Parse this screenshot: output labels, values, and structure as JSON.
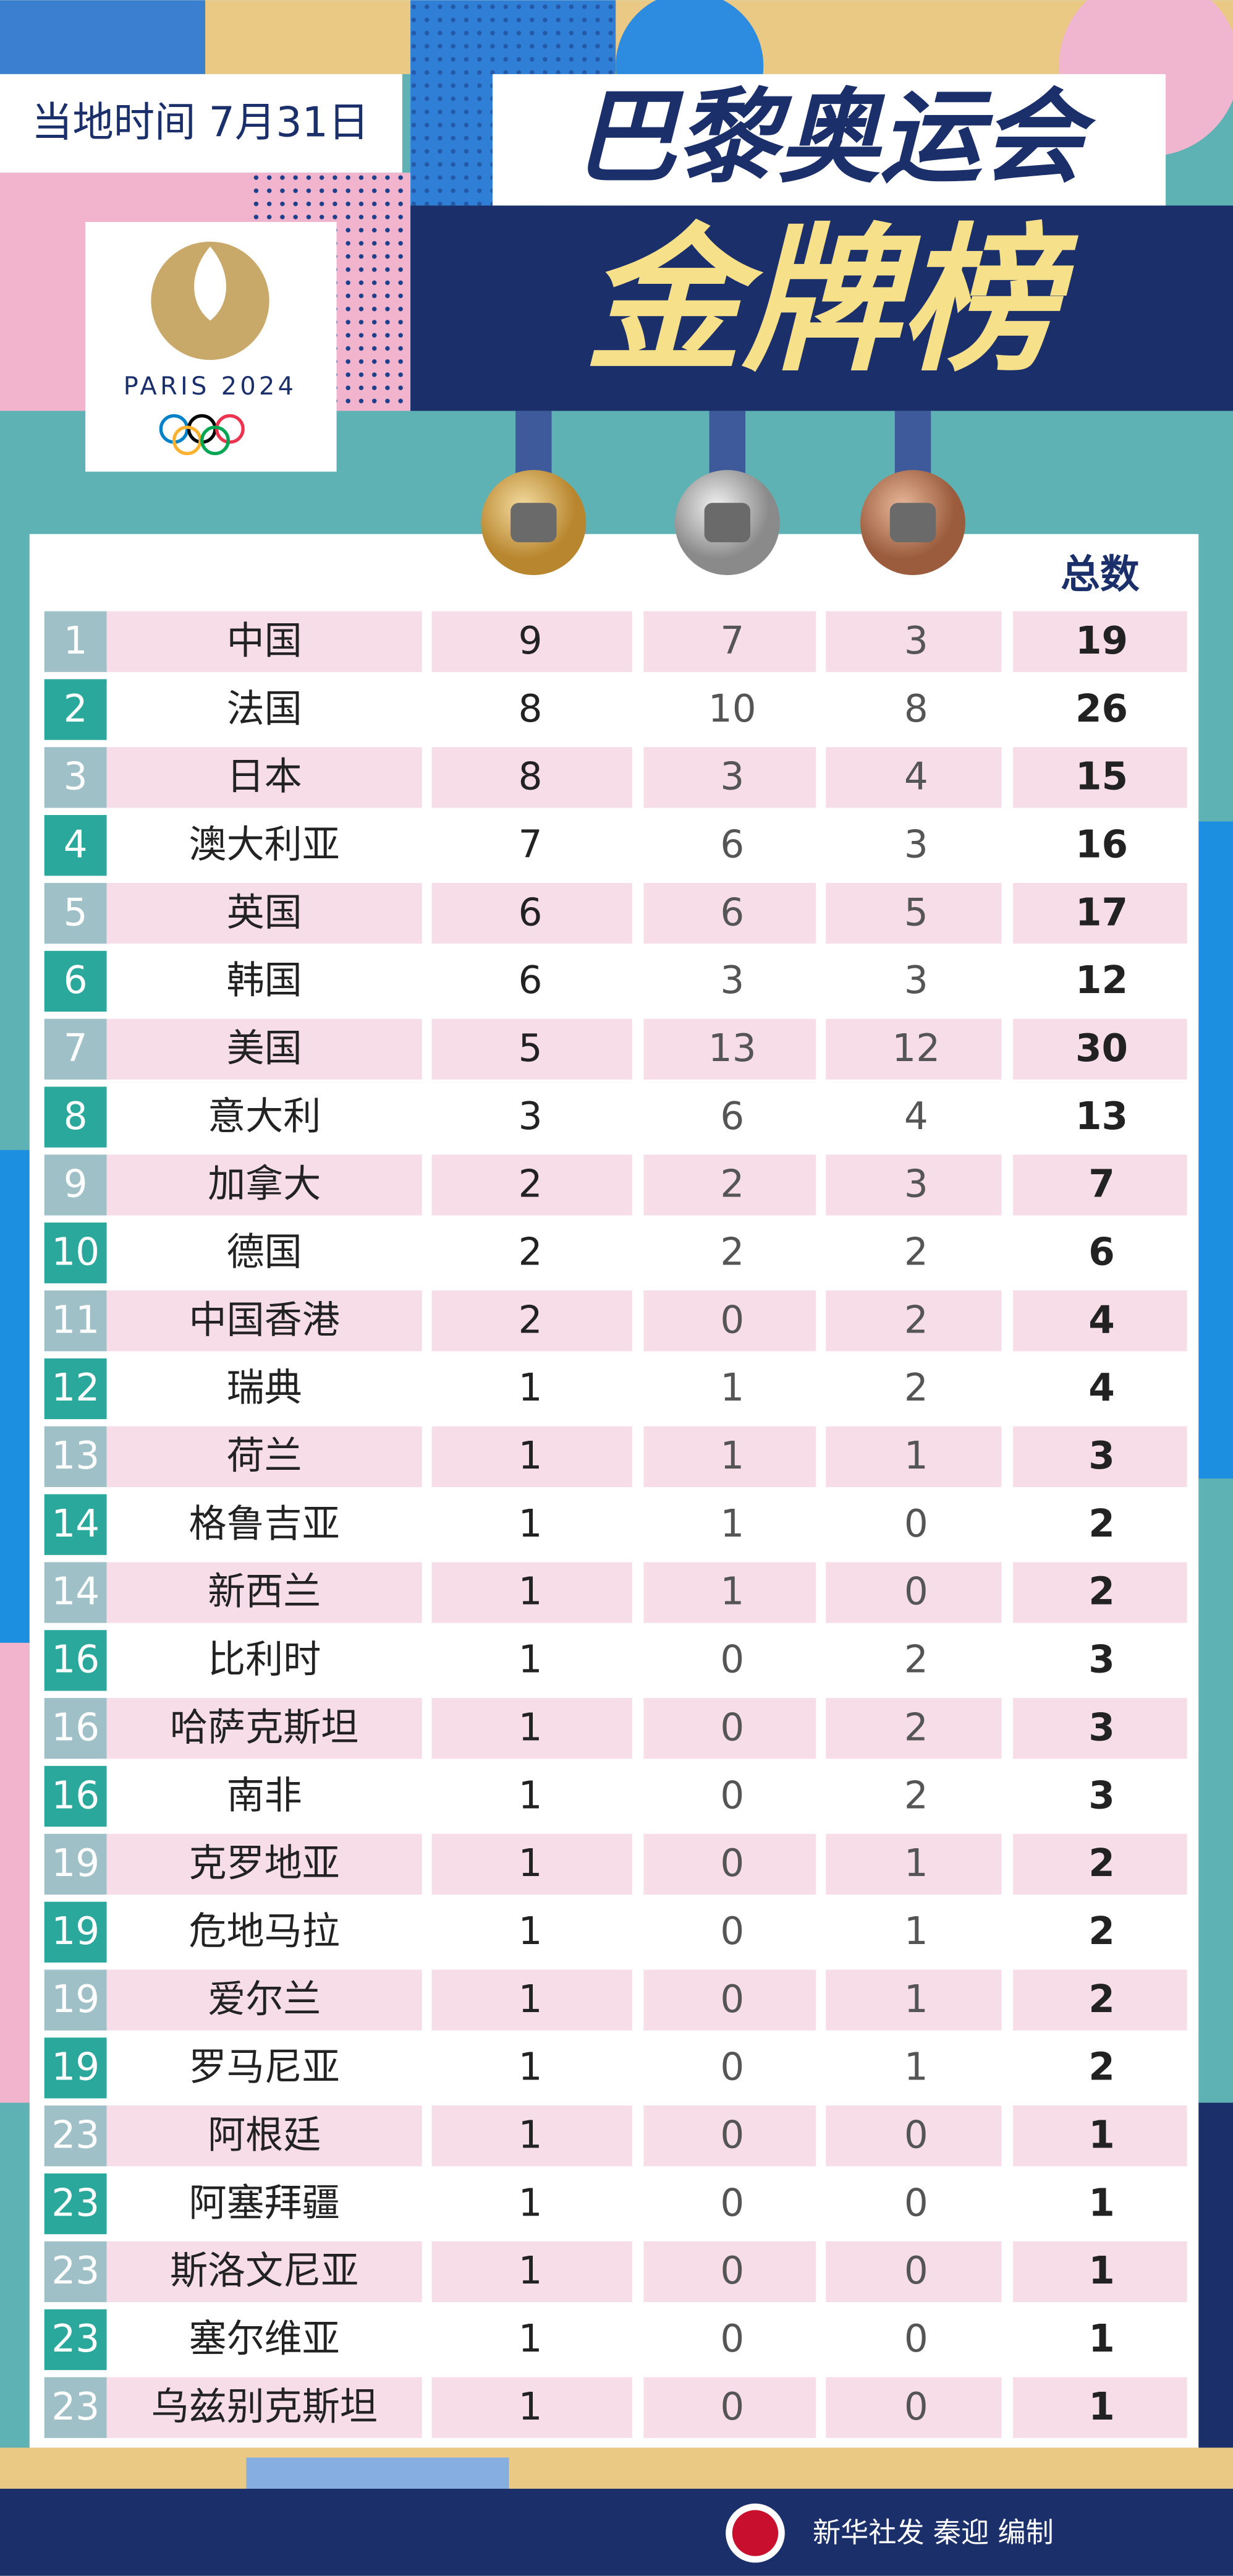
{
  "header": {
    "date": "当地时间 7月31日",
    "title": "巴黎奥运会",
    "subtitle": "金牌榜",
    "logo_text": "PARIS 2024"
  },
  "table": {
    "total_header": "总数",
    "rows": [
      [
        1,
        "中国",
        9,
        7,
        3,
        19
      ],
      [
        2,
        "法国",
        8,
        10,
        8,
        26
      ],
      [
        3,
        "日本",
        8,
        3,
        4,
        15
      ],
      [
        4,
        "澳大利亚",
        7,
        6,
        3,
        16
      ],
      [
        5,
        "英国",
        6,
        6,
        5,
        17
      ],
      [
        6,
        "韩国",
        6,
        3,
        3,
        12
      ],
      [
        7,
        "美国",
        5,
        13,
        12,
        30
      ],
      [
        8,
        "意大利",
        3,
        6,
        4,
        13
      ],
      [
        9,
        "加拿大",
        2,
        2,
        3,
        7
      ],
      [
        10,
        "德国",
        2,
        2,
        2,
        6
      ],
      [
        11,
        "中国香港",
        2,
        0,
        2,
        4
      ],
      [
        12,
        "瑞典",
        1,
        1,
        2,
        4
      ],
      [
        13,
        "荷兰",
        1,
        1,
        1,
        3
      ],
      [
        14,
        "格鲁吉亚",
        1,
        1,
        0,
        2
      ],
      [
        14,
        "新西兰",
        1,
        1,
        0,
        2
      ],
      [
        16,
        "比利时",
        1,
        0,
        2,
        3
      ],
      [
        16,
        "哈萨克斯坦",
        1,
        0,
        2,
        3
      ],
      [
        16,
        "南非",
        1,
        0,
        2,
        3
      ],
      [
        19,
        "克罗地亚",
        1,
        0,
        1,
        2
      ],
      [
        19,
        "危地马拉",
        1,
        0,
        1,
        2
      ],
      [
        19,
        "爱尔兰",
        1,
        0,
        1,
        2
      ],
      [
        19,
        "罗马尼亚",
        1,
        0,
        1,
        2
      ],
      [
        23,
        "阿根廷",
        1,
        0,
        0,
        1
      ],
      [
        23,
        "阿塞拜疆",
        1,
        0,
        0,
        1
      ],
      [
        23,
        "斯洛文尼亚",
        1,
        0,
        0,
        1
      ],
      [
        23,
        "塞尔维亚",
        1,
        0,
        0,
        1
      ],
      [
        23,
        "乌兹别克斯坦",
        1,
        0,
        0,
        1
      ]
    ]
  },
  "footer": "新华社发 秦迎 编制"
}
